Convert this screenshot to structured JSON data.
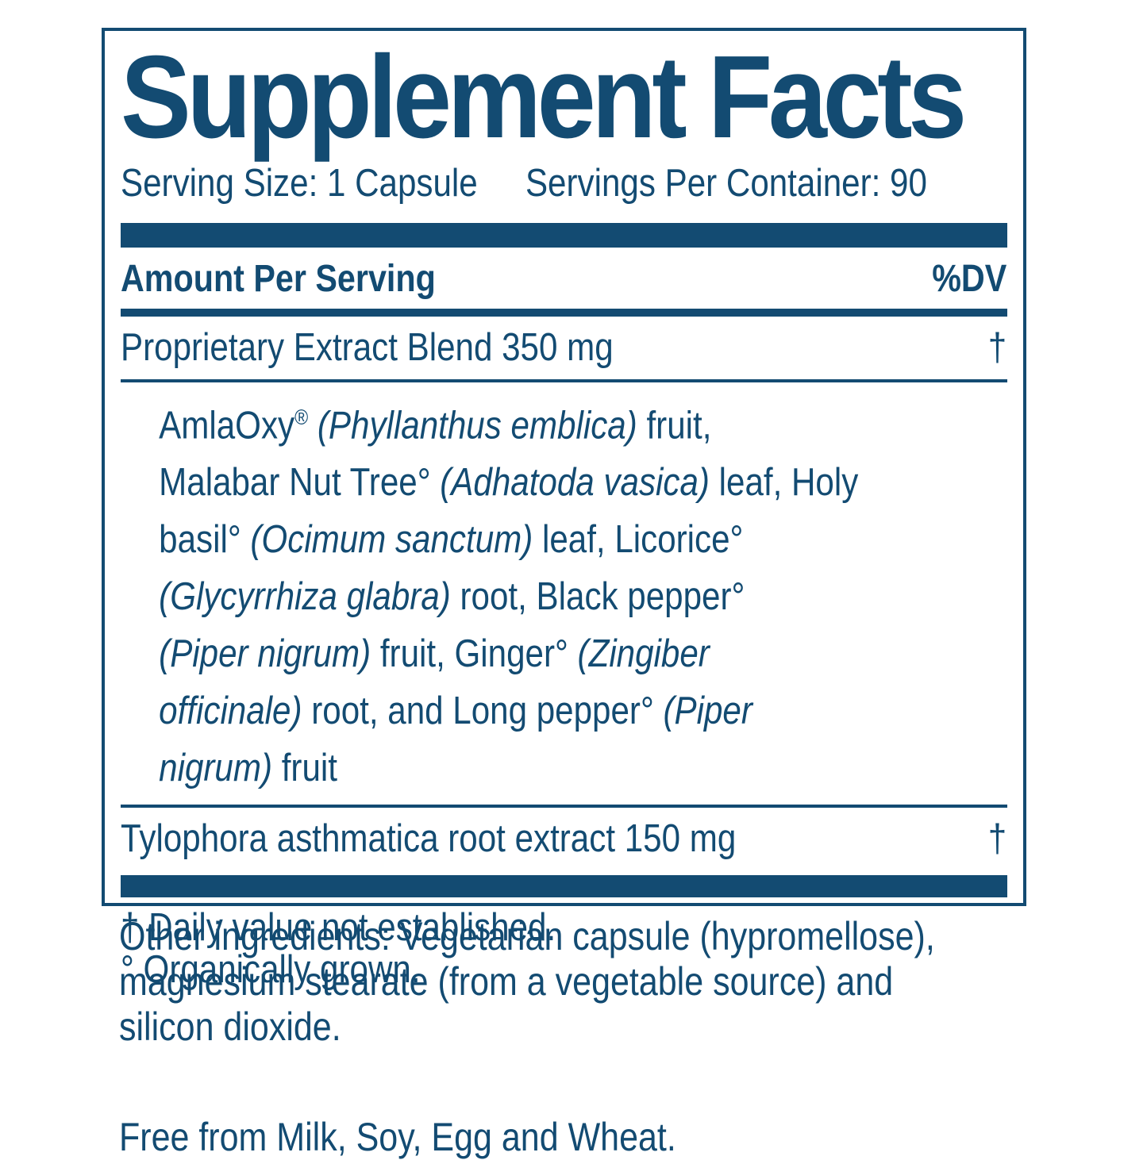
{
  "colors": {
    "navy": "#134b72"
  },
  "label": {
    "title": "Supplement Facts",
    "serving_size": "Serving Size: 1 Capsule",
    "servings_per_container": "Servings Per Container: 90",
    "amount_header": "Amount Per Serving",
    "dv_header": "%DV",
    "rows": [
      {
        "name": "Proprietary Extract Blend 350 mg",
        "dv": "†"
      },
      {
        "name": "Tylophora asthmatica root extract 150 mg",
        "dv": "†"
      }
    ],
    "blend_lines": [
      [
        {
          "t": "AmlaOxy"
        },
        {
          "t": "®",
          "sup": true
        },
        {
          "t": " "
        },
        {
          "t": "(Phyllanthus emblica",
          "i": true
        },
        {
          "t": ")",
          "i": true
        },
        {
          "t": " fruit,"
        }
      ],
      [
        {
          "t": "Malabar Nut Tree° "
        },
        {
          "t": "(Adhatoda vasica)",
          "i": true
        },
        {
          "t": " leaf, Holy"
        }
      ],
      [
        {
          "t": "basil° "
        },
        {
          "t": "(Ocimum sanctum)",
          "i": true
        },
        {
          "t": " leaf, Licorice°"
        }
      ],
      [
        {
          "t": "(Glycyrrhiza glabra)",
          "i": true
        },
        {
          "t": " root, Black pepper°"
        }
      ],
      [
        {
          "t": "(Piper nigrum)",
          "i": true
        },
        {
          "t": " fruit, Ginger° "
        },
        {
          "t": "(Zingiber",
          "i": true
        }
      ],
      [
        {
          "t": "officinale)",
          "i": true
        },
        {
          "t": " root, and Long pepper° "
        },
        {
          "t": "(Piper",
          "i": true
        }
      ],
      [
        {
          "t": "nigrum)",
          "i": true
        },
        {
          "t": " fruit"
        }
      ]
    ],
    "footnotes": [
      "† Daily value not established.",
      "° Organically grown."
    ]
  },
  "below": {
    "other_ingredients_lines": [
      "Other ingredients: Vegetarian capsule (hypromellose),",
      "magnesium stearate (from a vegetable source) and",
      "silicon dioxide."
    ],
    "free_from": "Free from Milk, Soy, Egg and Wheat."
  }
}
